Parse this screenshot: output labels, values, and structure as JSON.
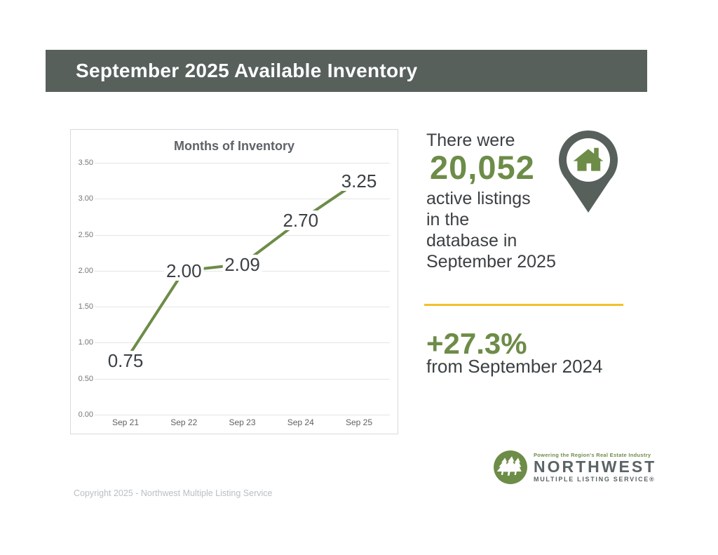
{
  "header": {
    "title": "September 2025 Available Inventory"
  },
  "chart_data": {
    "type": "line",
    "title": "Months of Inventory",
    "categories": [
      "Sep 21",
      "Sep 22",
      "Sep 23",
      "Sep 24",
      "Sep 25"
    ],
    "values": [
      0.75,
      2.0,
      2.09,
      2.7,
      3.25
    ],
    "point_labels": [
      "0.75",
      "2.00",
      "2.09",
      "2.70",
      "3.25"
    ],
    "xlabel": "",
    "ylabel": "",
    "ylim": [
      0,
      3.5
    ],
    "ytick_step": 0.5,
    "grid": true,
    "legend": "none",
    "line_color": "#6d8c48"
  },
  "stats": {
    "intro": "There were",
    "count": "20,052",
    "desc_lines": [
      "active listings",
      "in the",
      "database in",
      "September 2025"
    ],
    "change": "+27.3%",
    "change_desc": "from September 2024"
  },
  "logo": {
    "tagline": "Powering the Region's Real Estate Industry",
    "name": "NORTHWEST",
    "subname": "MULTIPLE LISTING SERVICE®"
  },
  "footer": {
    "copyright": "Copyright 2025 - Northwest Multiple Listing Service"
  },
  "colors": {
    "header_bg": "#57605B",
    "accent_green": "#6d8c48",
    "divider_yellow": "#F4C02A",
    "dark_text": "#3c4043",
    "logo_gray": "#5b6466"
  }
}
